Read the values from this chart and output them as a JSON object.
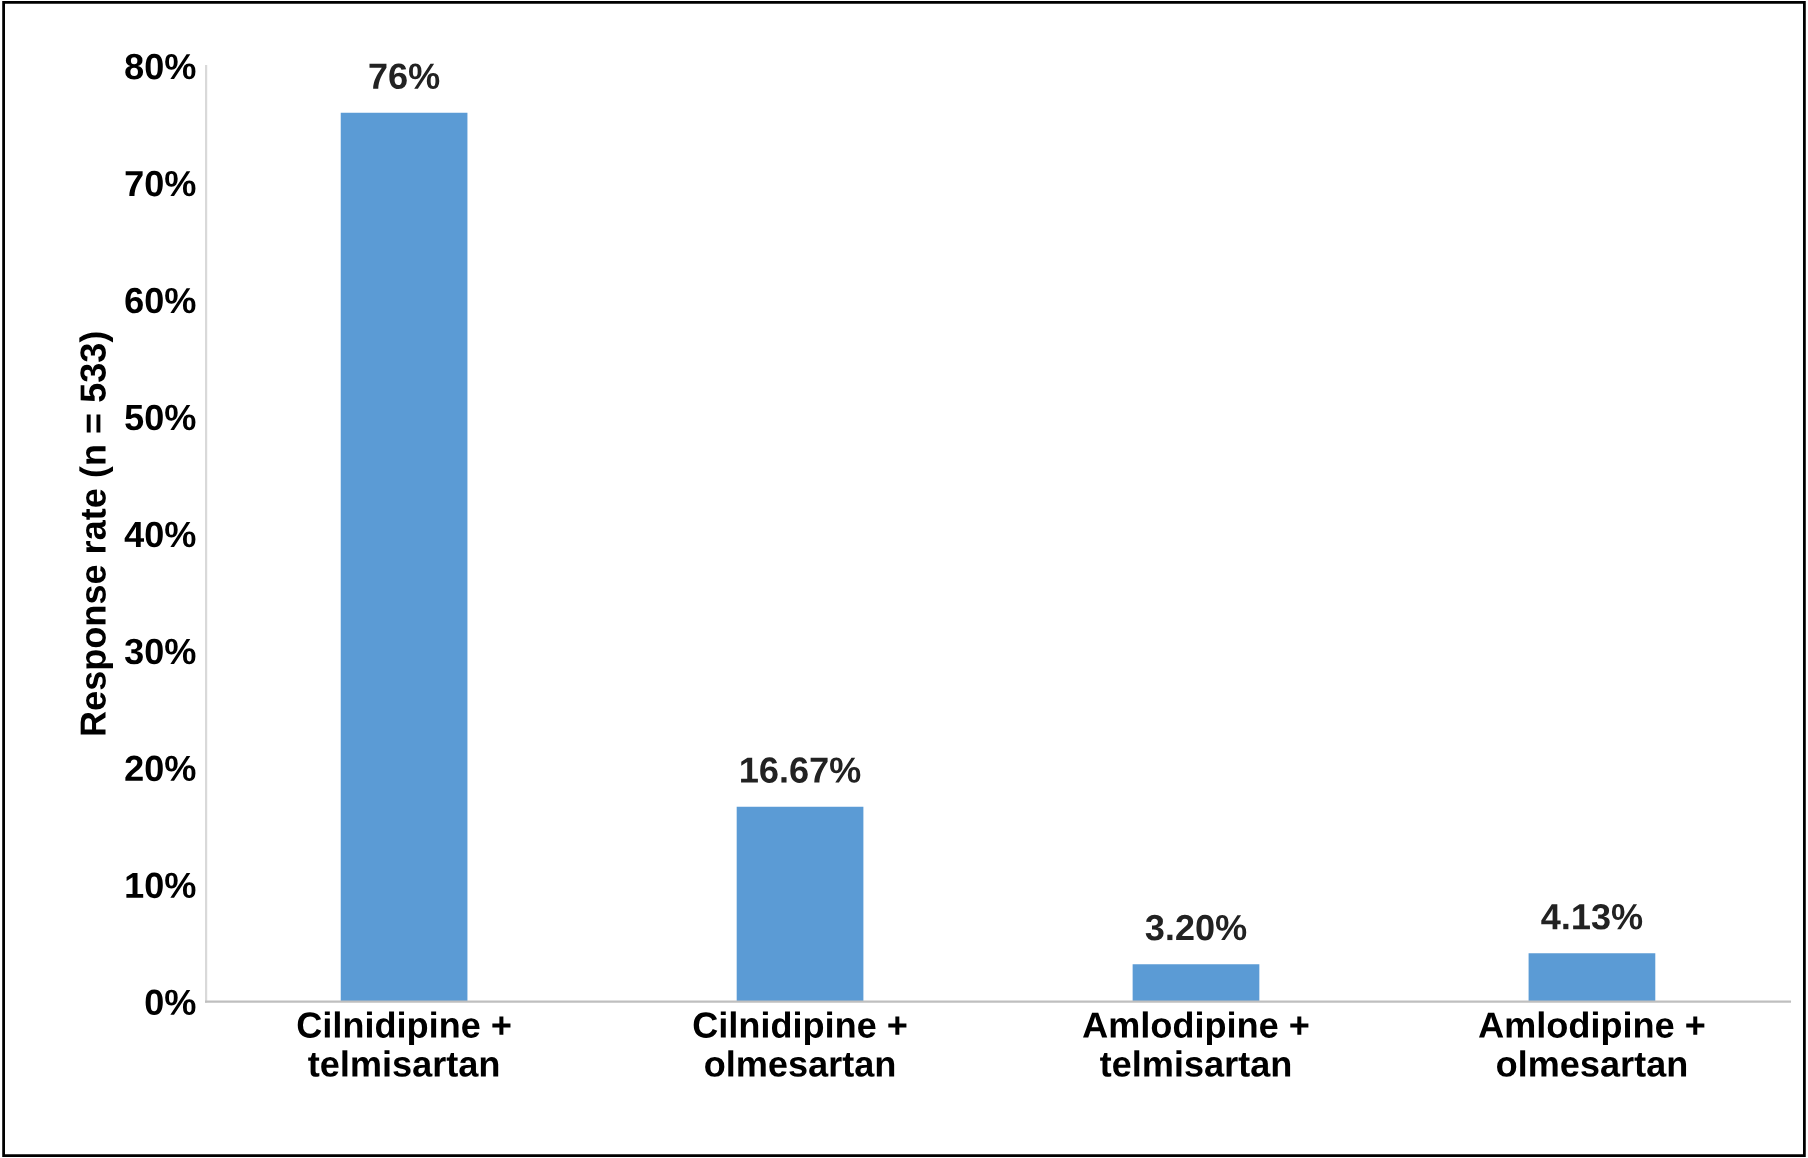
{
  "chart_data": {
    "type": "bar",
    "ylabel": "Response rate (n = 533)",
    "categories": [
      "Cilnidipine +\ntelmisartan",
      "Cilnidipine +\nolmesartan",
      "Amlodipine +\ntelmisartan",
      "Amlodipine +\nolmesartan"
    ],
    "values": [
      76,
      16.67,
      3.2,
      4.13
    ],
    "value_labels": [
      "76%",
      "16.67%",
      "3.20%",
      "4.13%"
    ],
    "color": "#5b9bd5",
    "ylim": [
      0,
      80
    ],
    "yticks": [
      {
        "value": 0,
        "label": "0%"
      },
      {
        "value": 10,
        "label": "10%"
      },
      {
        "value": 20,
        "label": "20%"
      },
      {
        "value": 30,
        "label": "30%"
      },
      {
        "value": 40,
        "label": "40%"
      },
      {
        "value": 50,
        "label": "50%"
      },
      {
        "value": 60,
        "label": "60%"
      },
      {
        "value": 70,
        "label": "70%"
      },
      {
        "value": 80,
        "label": "80%"
      }
    ],
    "grid": false
  }
}
